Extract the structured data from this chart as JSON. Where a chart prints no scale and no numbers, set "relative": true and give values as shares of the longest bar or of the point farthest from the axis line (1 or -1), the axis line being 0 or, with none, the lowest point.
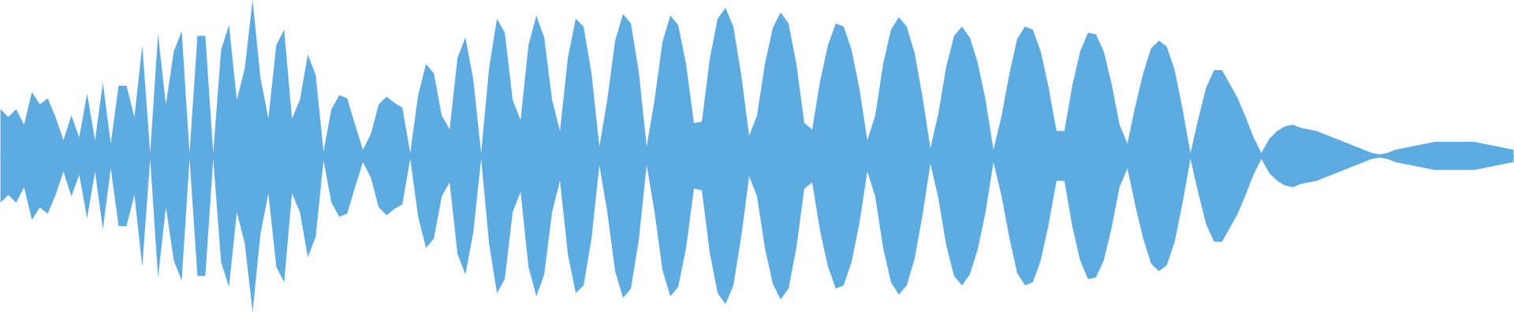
{
  "chart_data": {
    "type": "area",
    "relative": true,
    "ref_lines": [
      {
        "axis": "y",
        "value": 0,
        "color": "#5dace1"
      }
    ],
    "categories": [
      null,
      null,
      null,
      null,
      null,
      null,
      null,
      null,
      null,
      null,
      null,
      null,
      null,
      null,
      null,
      null,
      null,
      null,
      null,
      null,
      null,
      null,
      null,
      null,
      null,
      null,
      null,
      null,
      null,
      null,
      null,
      null,
      null,
      null,
      null,
      null,
      null,
      null,
      null,
      null,
      null,
      null,
      null,
      null,
      null,
      null,
      null,
      null,
      null,
      null,
      null,
      null,
      null,
      null,
      null,
      null,
      null,
      null,
      null,
      null,
      null,
      null,
      null,
      null,
      null,
      null,
      null,
      null,
      null,
      null,
      null,
      null,
      null,
      null,
      null,
      null,
      null,
      null,
      null,
      null,
      null,
      null,
      null,
      null,
      null,
      null,
      null,
      null,
      null,
      null,
      null,
      null,
      null,
      null,
      null,
      null,
      null,
      null,
      null,
      null,
      null,
      null,
      null,
      null,
      null,
      null,
      null,
      null,
      null,
      null,
      null,
      null,
      null,
      null,
      null,
      null,
      null,
      null,
      null,
      null,
      null,
      null,
      null,
      null,
      null,
      null,
      null,
      null,
      null,
      null,
      null,
      null,
      null,
      null,
      null,
      null,
      null,
      null,
      null,
      null,
      null,
      null,
      null,
      null,
      null,
      null,
      null,
      null,
      null,
      null,
      null,
      null,
      null,
      null,
      null,
      null,
      null,
      null,
      null,
      null,
      null,
      null,
      null,
      null,
      null,
      null,
      null,
      null,
      null,
      null,
      null,
      null,
      null,
      null,
      null,
      null,
      null,
      null,
      null,
      null,
      null,
      null,
      null,
      null,
      null,
      null,
      null,
      null,
      null,
      null,
      null,
      null,
      null
    ],
    "series": [
      {
        "color": "#5dace1",
        "values": [
          0.3,
          0.25,
          0.3,
          0.2,
          0.41,
          0.33,
          0.37,
          0.25,
          0.1,
          0.26,
          0.12,
          0.4,
          0.1,
          0.47,
          0.08,
          0.45,
          0.45,
          0.25,
          0.71,
          0.02,
          0.78,
          0.33,
          0.67,
          0.8,
          0.02,
          0.77,
          0.77,
          0.02,
          0.68,
          0.84,
          0.36,
          0.56,
          1,
          0.5,
          0.24,
          0.71,
          0.81,
          0.24,
          0.36,
          0.65,
          0.52,
          0.03,
          0.3,
          0.39,
          0.37,
          0.2,
          0.04,
          0.14,
          0.33,
          0.38,
          0.34,
          0.31,
          0.02,
          0.39,
          0.59,
          0.53,
          0.26,
          0.17,
          0.63,
          0.76,
          0.49,
          0.02,
          0.56,
          0.88,
          0.79,
          0.36,
          0.23,
          0.71,
          0.9,
          0.76,
          0.36,
          0.16,
          0.63,
          0.88,
          0.83,
          0.53,
          0.06,
          0.36,
          0.74,
          0.91,
          0.85,
          0.54,
          0.06,
          0.36,
          0.73,
          0.9,
          0.84,
          0.59,
          0.21,
          0.22,
          0.62,
          0.88,
          0.95,
          0.83,
          0.52,
          0.13,
          0.26,
          0.59,
          0.82,
          0.92,
          0.85,
          0.59,
          0.21,
          0.17,
          0.48,
          0.71,
          0.85,
          0.83,
          0.68,
          0.43,
          0.1,
          0.26,
          0.59,
          0.81,
          0.89,
          0.83,
          0.66,
          0.38,
          0.05,
          0.27,
          0.57,
          0.77,
          0.83,
          0.76,
          0.6,
          0.36,
          0.04,
          0.25,
          0.52,
          0.75,
          0.83,
          0.81,
          0.67,
          0.44,
          0.16,
          0.16,
          0.45,
          0.67,
          0.79,
          0.78,
          0.67,
          0.46,
          0.2,
          0.08,
          0.32,
          0.53,
          0.69,
          0.74,
          0.7,
          0.55,
          0.3,
          0.02,
          0.24,
          0.44,
          0.55,
          0.55,
          0.46,
          0.37,
          0.25,
          0.12,
          0.02,
          0.11,
          0.16,
          0.19,
          0.2,
          0.18,
          0.17,
          0.16,
          0.14,
          0.12,
          0.1,
          0.08,
          0.06,
          0.04,
          0.02,
          0.01,
          0.02,
          0.04,
          0.05,
          0.06,
          0.07,
          0.08,
          0.09,
          0.09,
          0.09,
          0.09,
          0.09,
          0.09,
          0.08,
          0.07,
          0.06,
          0.05,
          0.04
        ]
      },
      {
        "color": "#5dace1",
        "values": [
          -0.3,
          -0.25,
          -0.3,
          -0.2,
          -0.41,
          -0.33,
          -0.37,
          -0.25,
          -0.1,
          -0.26,
          -0.12,
          -0.4,
          -0.1,
          -0.47,
          -0.08,
          -0.45,
          -0.45,
          -0.25,
          -0.71,
          -0.02,
          -0.78,
          -0.33,
          -0.67,
          -0.8,
          -0.02,
          -0.77,
          -0.77,
          -0.02,
          -0.68,
          -0.84,
          -0.36,
          -0.56,
          -1,
          -0.5,
          -0.24,
          -0.71,
          -0.81,
          -0.24,
          -0.36,
          -0.65,
          -0.52,
          -0.03,
          -0.3,
          -0.39,
          -0.37,
          -0.2,
          -0.04,
          -0.14,
          -0.33,
          -0.38,
          -0.34,
          -0.31,
          -0.02,
          -0.39,
          -0.59,
          -0.53,
          -0.26,
          -0.17,
          -0.63,
          -0.76,
          -0.49,
          -0.02,
          -0.56,
          -0.88,
          -0.79,
          -0.36,
          -0.23,
          -0.71,
          -0.9,
          -0.76,
          -0.36,
          -0.16,
          -0.63,
          -0.88,
          -0.83,
          -0.53,
          -0.06,
          -0.36,
          -0.74,
          -0.91,
          -0.85,
          -0.54,
          -0.06,
          -0.36,
          -0.73,
          -0.9,
          -0.84,
          -0.59,
          -0.21,
          -0.22,
          -0.62,
          -0.88,
          -0.95,
          -0.83,
          -0.52,
          -0.13,
          -0.26,
          -0.59,
          -0.82,
          -0.92,
          -0.85,
          -0.59,
          -0.21,
          -0.17,
          -0.48,
          -0.71,
          -0.85,
          -0.83,
          -0.68,
          -0.43,
          -0.1,
          -0.26,
          -0.59,
          -0.81,
          -0.89,
          -0.83,
          -0.66,
          -0.38,
          -0.05,
          -0.27,
          -0.57,
          -0.77,
          -0.83,
          -0.76,
          -0.6,
          -0.36,
          -0.04,
          -0.25,
          -0.52,
          -0.75,
          -0.83,
          -0.81,
          -0.67,
          -0.44,
          -0.16,
          -0.16,
          -0.45,
          -0.67,
          -0.79,
          -0.78,
          -0.67,
          -0.46,
          -0.2,
          -0.08,
          -0.32,
          -0.53,
          -0.69,
          -0.74,
          -0.7,
          -0.55,
          -0.3,
          -0.02,
          -0.24,
          -0.44,
          -0.55,
          -0.55,
          -0.46,
          -0.37,
          -0.25,
          -0.12,
          -0.02,
          -0.11,
          -0.16,
          -0.19,
          -0.2,
          -0.18,
          -0.17,
          -0.16,
          -0.14,
          -0.12,
          -0.1,
          -0.08,
          -0.06,
          -0.04,
          -0.02,
          -0.01,
          -0.02,
          -0.04,
          -0.05,
          -0.06,
          -0.07,
          -0.08,
          -0.09,
          -0.09,
          -0.09,
          -0.09,
          -0.09,
          -0.09,
          -0.08,
          -0.07,
          -0.06,
          -0.05,
          -0.04
        ]
      }
    ]
  }
}
